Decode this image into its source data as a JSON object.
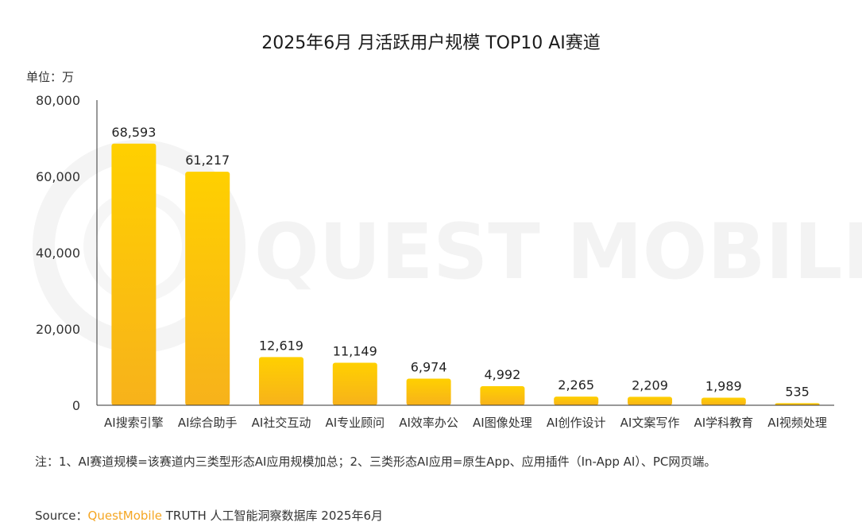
{
  "title": "2025年6月 月活跃用户规模 TOP10 AI赛道",
  "unit_label": "单位：万",
  "watermark": "QUEST MOBILE",
  "note": "注：1、AI赛道规模=该赛道内三类型形态AI应用规模加总；2、三类形态AI应用=原生App、应用插件（In-App AI）、PC网页端。",
  "source": {
    "prefix": "Source：",
    "brand": "QuestMobile",
    "rest": " TRUTH 人工智能洞察数据库 2025年6月"
  },
  "colors": {
    "bar_top": "#ffd000",
    "bar_bottom": "#f7b21b",
    "axis": "#333333",
    "watermark": "#f3f3f3"
  },
  "chart_data": {
    "type": "bar",
    "categories": [
      "AI搜索引擎",
      "AI综合助手",
      "AI社交互动",
      "AI专业顾问",
      "AI效率办公",
      "AI图像处理",
      "AI创作设计",
      "AI文案写作",
      "AI学科教育",
      "AI视频处理"
    ],
    "values": [
      68593,
      61217,
      12619,
      11149,
      6974,
      4992,
      2265,
      2209,
      1989,
      535
    ],
    "value_labels": [
      "68,593",
      "61,217",
      "12,619",
      "11,149",
      "6,974",
      "4,992",
      "2,265",
      "2,209",
      "1,989",
      "535"
    ],
    "ylim": [
      0,
      80000
    ],
    "yticks": [
      0,
      20000,
      40000,
      60000,
      80000
    ],
    "ytick_labels": [
      "0",
      "20,000",
      "40,000",
      "60,000",
      "80,000"
    ],
    "grid": false,
    "legend": "none"
  }
}
